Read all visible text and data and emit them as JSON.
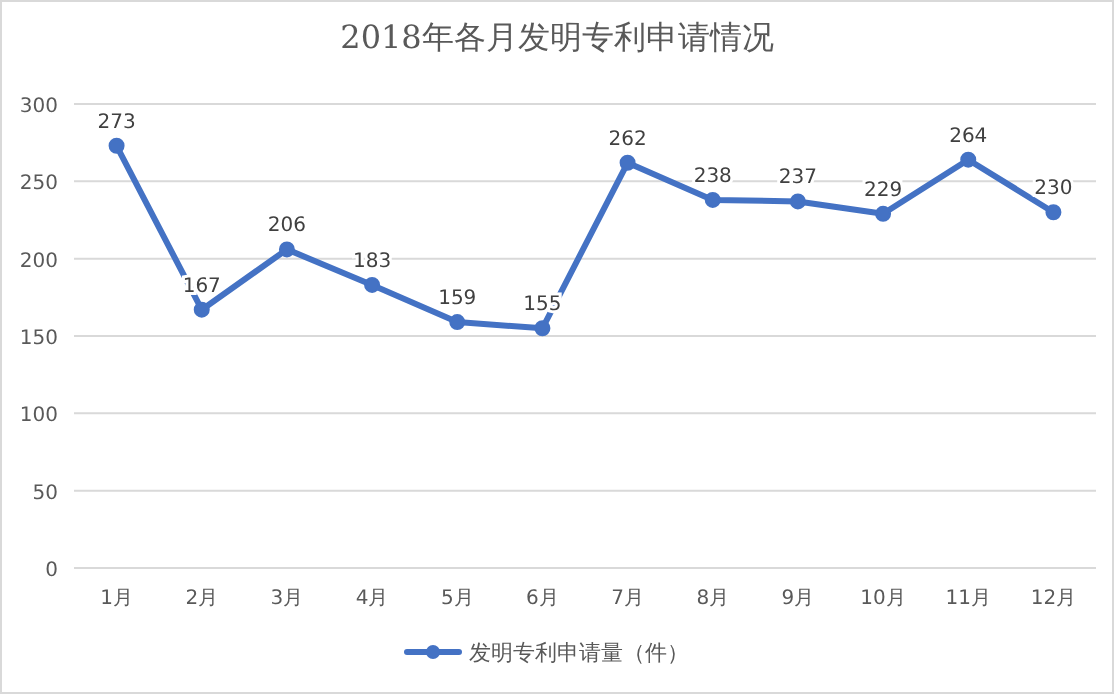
{
  "chart_data": {
    "type": "line",
    "title": "2018年各月发明专利申请情况",
    "categories": [
      "1月",
      "2月",
      "3月",
      "4月",
      "5月",
      "6月",
      "7月",
      "8月",
      "9月",
      "10月",
      "11月",
      "12月"
    ],
    "series": [
      {
        "name": "发明专利申请量（件）",
        "color": "#4472c4",
        "values": [
          273,
          167,
          206,
          183,
          159,
          155,
          262,
          238,
          237,
          229,
          264,
          230
        ]
      }
    ],
    "ylim": [
      0,
      300
    ],
    "yticks": [
      0,
      50,
      100,
      150,
      200,
      250,
      300
    ],
    "grid": "y",
    "legend": "bottom",
    "marker": "circle",
    "line_style": "solid",
    "data_labels": true
  }
}
